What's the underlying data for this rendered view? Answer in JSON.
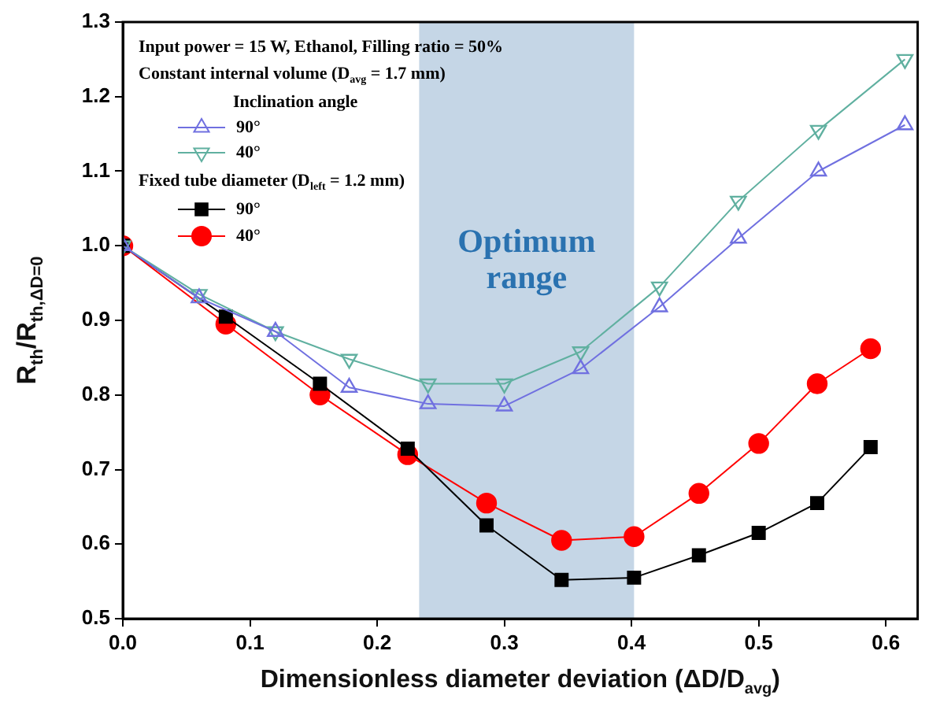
{
  "chart_data": {
    "type": "line",
    "xlabel": "Dimensionless diameter deviation (ΔD/D$_{avg}$)",
    "ylabel": "R$_{th}$/R$_{th,ΔD=0}$",
    "xlim": [
      0,
      0.625
    ],
    "xticks": [
      {
        "value": 0,
        "label": "0.0"
      },
      0.1,
      0.2,
      0.3,
      0.4,
      0.5,
      0.6
    ],
    "ylim": [
      0.5,
      1.3
    ],
    "yticks": [
      0.5,
      0.6,
      0.7,
      0.8,
      0.9,
      {
        "value": 1,
        "label": "1.0"
      },
      1.1,
      1.2,
      1.3
    ],
    "grid": false,
    "legend": "top left",
    "legend_title": "Inclination angle",
    "line_style": "solid",
    "annotations": [
      "Input power = 15 W, Ethanol, Filling ratio = 50%",
      "Constant internal volume (D$_{avg}$ = 1.7 mm)",
      "Fixed tube diameter (D$_{left}$ = 1.2 mm)"
    ],
    "bands": [
      {
        "axis": "x",
        "from": 0.233,
        "to": 0.402,
        "label": "Optimum range",
        "color": "#c5d6e6"
      }
    ],
    "series": [
      {
        "name": "90°",
        "color": "#7070e0",
        "marker": "triangle",
        "x": [
          0,
          0.06,
          0.12,
          0.178,
          0.24,
          0.3,
          0.36,
          0.422,
          0.484,
          0.547,
          0.615
        ],
        "values": [
          1.0,
          0.93,
          0.885,
          0.81,
          0.788,
          0.785,
          0.835,
          0.918,
          1.01,
          1.1,
          1.162
        ]
      },
      {
        "name": "40°",
        "color": "#60b0a0",
        "marker": "triangle-down",
        "x": [
          0,
          0.06,
          0.12,
          0.178,
          0.24,
          0.3,
          0.36,
          0.422,
          0.484,
          0.547,
          0.615
        ],
        "values": [
          1.0,
          0.935,
          0.885,
          0.848,
          0.815,
          0.815,
          0.858,
          0.945,
          1.06,
          1.155,
          1.25
        ]
      },
      {
        "name": "90°",
        "color": "#000000",
        "marker": "square",
        "x": [
          0,
          0.081,
          0.155,
          0.224,
          0.286,
          0.345,
          0.402,
          0.453,
          0.5,
          0.546,
          0.588
        ],
        "values": [
          1.0,
          0.905,
          0.815,
          0.728,
          0.625,
          0.552,
          0.555,
          0.585,
          0.615,
          0.655,
          0.73
        ]
      },
      {
        "name": "40°",
        "color": "#ff0000",
        "marker": "circle",
        "x": [
          0,
          0.081,
          0.155,
          0.224,
          0.286,
          0.345,
          0.402,
          0.453,
          0.5,
          0.546,
          0.588
        ],
        "values": [
          1.0,
          0.895,
          0.8,
          0.72,
          0.655,
          0.605,
          0.61,
          0.668,
          0.735,
          0.815,
          0.862
        ]
      }
    ]
  }
}
